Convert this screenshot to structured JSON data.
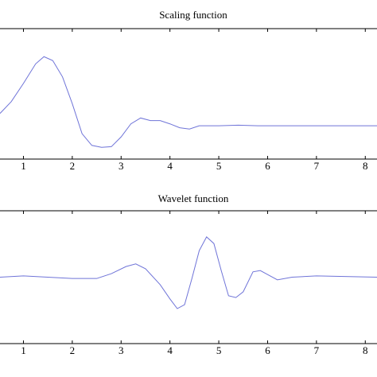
{
  "chart_data": [
    {
      "type": "line",
      "title": "Scaling function",
      "x": [
        0.52,
        0.75,
        1.0,
        1.25,
        1.42,
        1.6,
        1.8,
        2.0,
        2.2,
        2.4,
        2.6,
        2.8,
        3.0,
        3.2,
        3.4,
        3.6,
        3.8,
        4.0,
        4.2,
        4.4,
        4.6,
        5.0,
        5.4,
        5.8,
        8.24
      ],
      "series": [
        {
          "color": "#6f74d8",
          "values": [
            0.2,
            0.38,
            0.66,
            0.96,
            1.07,
            1.01,
            0.76,
            0.35,
            -0.11,
            -0.29,
            -0.32,
            -0.31,
            -0.16,
            0.04,
            0.13,
            0.09,
            0.09,
            0.04,
            -0.02,
            -0.04,
            0.01,
            0.01,
            0.02,
            0.01,
            0.01
          ]
        }
      ],
      "xlim": [
        0.52,
        8.24
      ],
      "ylim": [
        -0.5,
        1.5
      ],
      "xticks": [
        1,
        2,
        3,
        4,
        5,
        6,
        7,
        8
      ]
    },
    {
      "type": "line",
      "title": "Wavelet function",
      "x": [
        0.52,
        1.0,
        1.5,
        2.0,
        2.5,
        2.8,
        3.1,
        3.3,
        3.5,
        3.8,
        4.0,
        4.15,
        4.3,
        4.45,
        4.6,
        4.75,
        4.9,
        5.05,
        5.2,
        5.35,
        5.5,
        5.7,
        5.85,
        6.0,
        6.2,
        6.5,
        7.0,
        8.24
      ],
      "series": [
        {
          "color": "#6f74d8",
          "values": [
            0,
            0.03,
            0,
            -0.03,
            -0.03,
            0.08,
            0.24,
            0.3,
            0.19,
            -0.17,
            -0.49,
            -0.71,
            -0.62,
            -0.03,
            0.6,
            0.91,
            0.76,
            0.15,
            -0.42,
            -0.46,
            -0.33,
            0.12,
            0.15,
            0.06,
            -0.06,
            0,
            0.03,
            0
          ]
        }
      ],
      "xlim": [
        0.52,
        8.24
      ],
      "ylim": [
        -1.5,
        1.5
      ],
      "xticks": [
        1,
        2,
        3,
        4,
        5,
        6,
        7,
        8
      ]
    }
  ]
}
